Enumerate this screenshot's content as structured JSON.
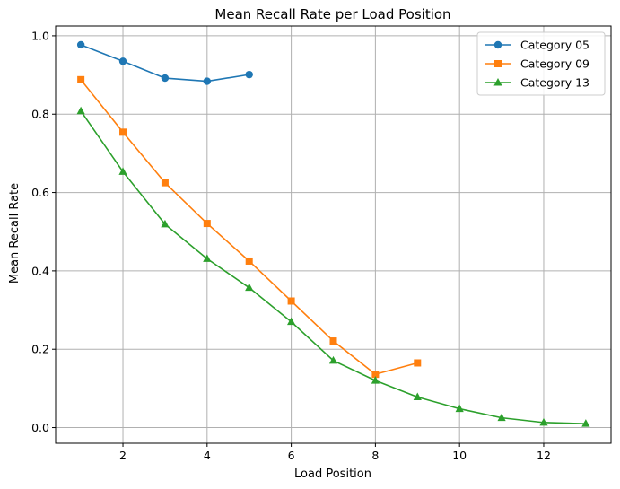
{
  "chart_data": {
    "type": "line",
    "title": "Mean Recall Rate per Load Position",
    "xlabel": "Load Position",
    "ylabel": "Mean Recall Rate",
    "xlim": [
      0.4,
      13.6
    ],
    "ylim": [
      -0.04,
      1.025
    ],
    "xticks": [
      2,
      4,
      6,
      8,
      10,
      12
    ],
    "yticks": [
      0.0,
      0.2,
      0.4,
      0.6,
      0.8,
      1.0
    ],
    "xtick_labels": [
      "2",
      "4",
      "6",
      "8",
      "10",
      "12"
    ],
    "ytick_labels": [
      "0.0",
      "0.2",
      "0.4",
      "0.6",
      "0.8",
      "1.0"
    ],
    "grid": true,
    "legend_position": "top-right",
    "series": [
      {
        "name": "Category 05",
        "color": "#1f77b4",
        "marker": "circle",
        "x": [
          1,
          2,
          3,
          4,
          5
        ],
        "y": [
          0.977,
          0.935,
          0.892,
          0.884,
          0.901
        ]
      },
      {
        "name": "Category 09",
        "color": "#ff7f0e",
        "marker": "square",
        "x": [
          1,
          2,
          3,
          4,
          5,
          6,
          7,
          8,
          9
        ],
        "y": [
          0.888,
          0.754,
          0.625,
          0.521,
          0.425,
          0.323,
          0.221,
          0.136,
          0.165
        ]
      },
      {
        "name": "Category 13",
        "color": "#2ca02c",
        "marker": "triangle",
        "x": [
          1,
          2,
          3,
          4,
          5,
          6,
          7,
          8,
          9,
          10,
          11,
          12,
          13
        ],
        "y": [
          0.808,
          0.653,
          0.519,
          0.431,
          0.357,
          0.27,
          0.171,
          0.12,
          0.078,
          0.048,
          0.025,
          0.013,
          0.01
        ]
      }
    ]
  }
}
